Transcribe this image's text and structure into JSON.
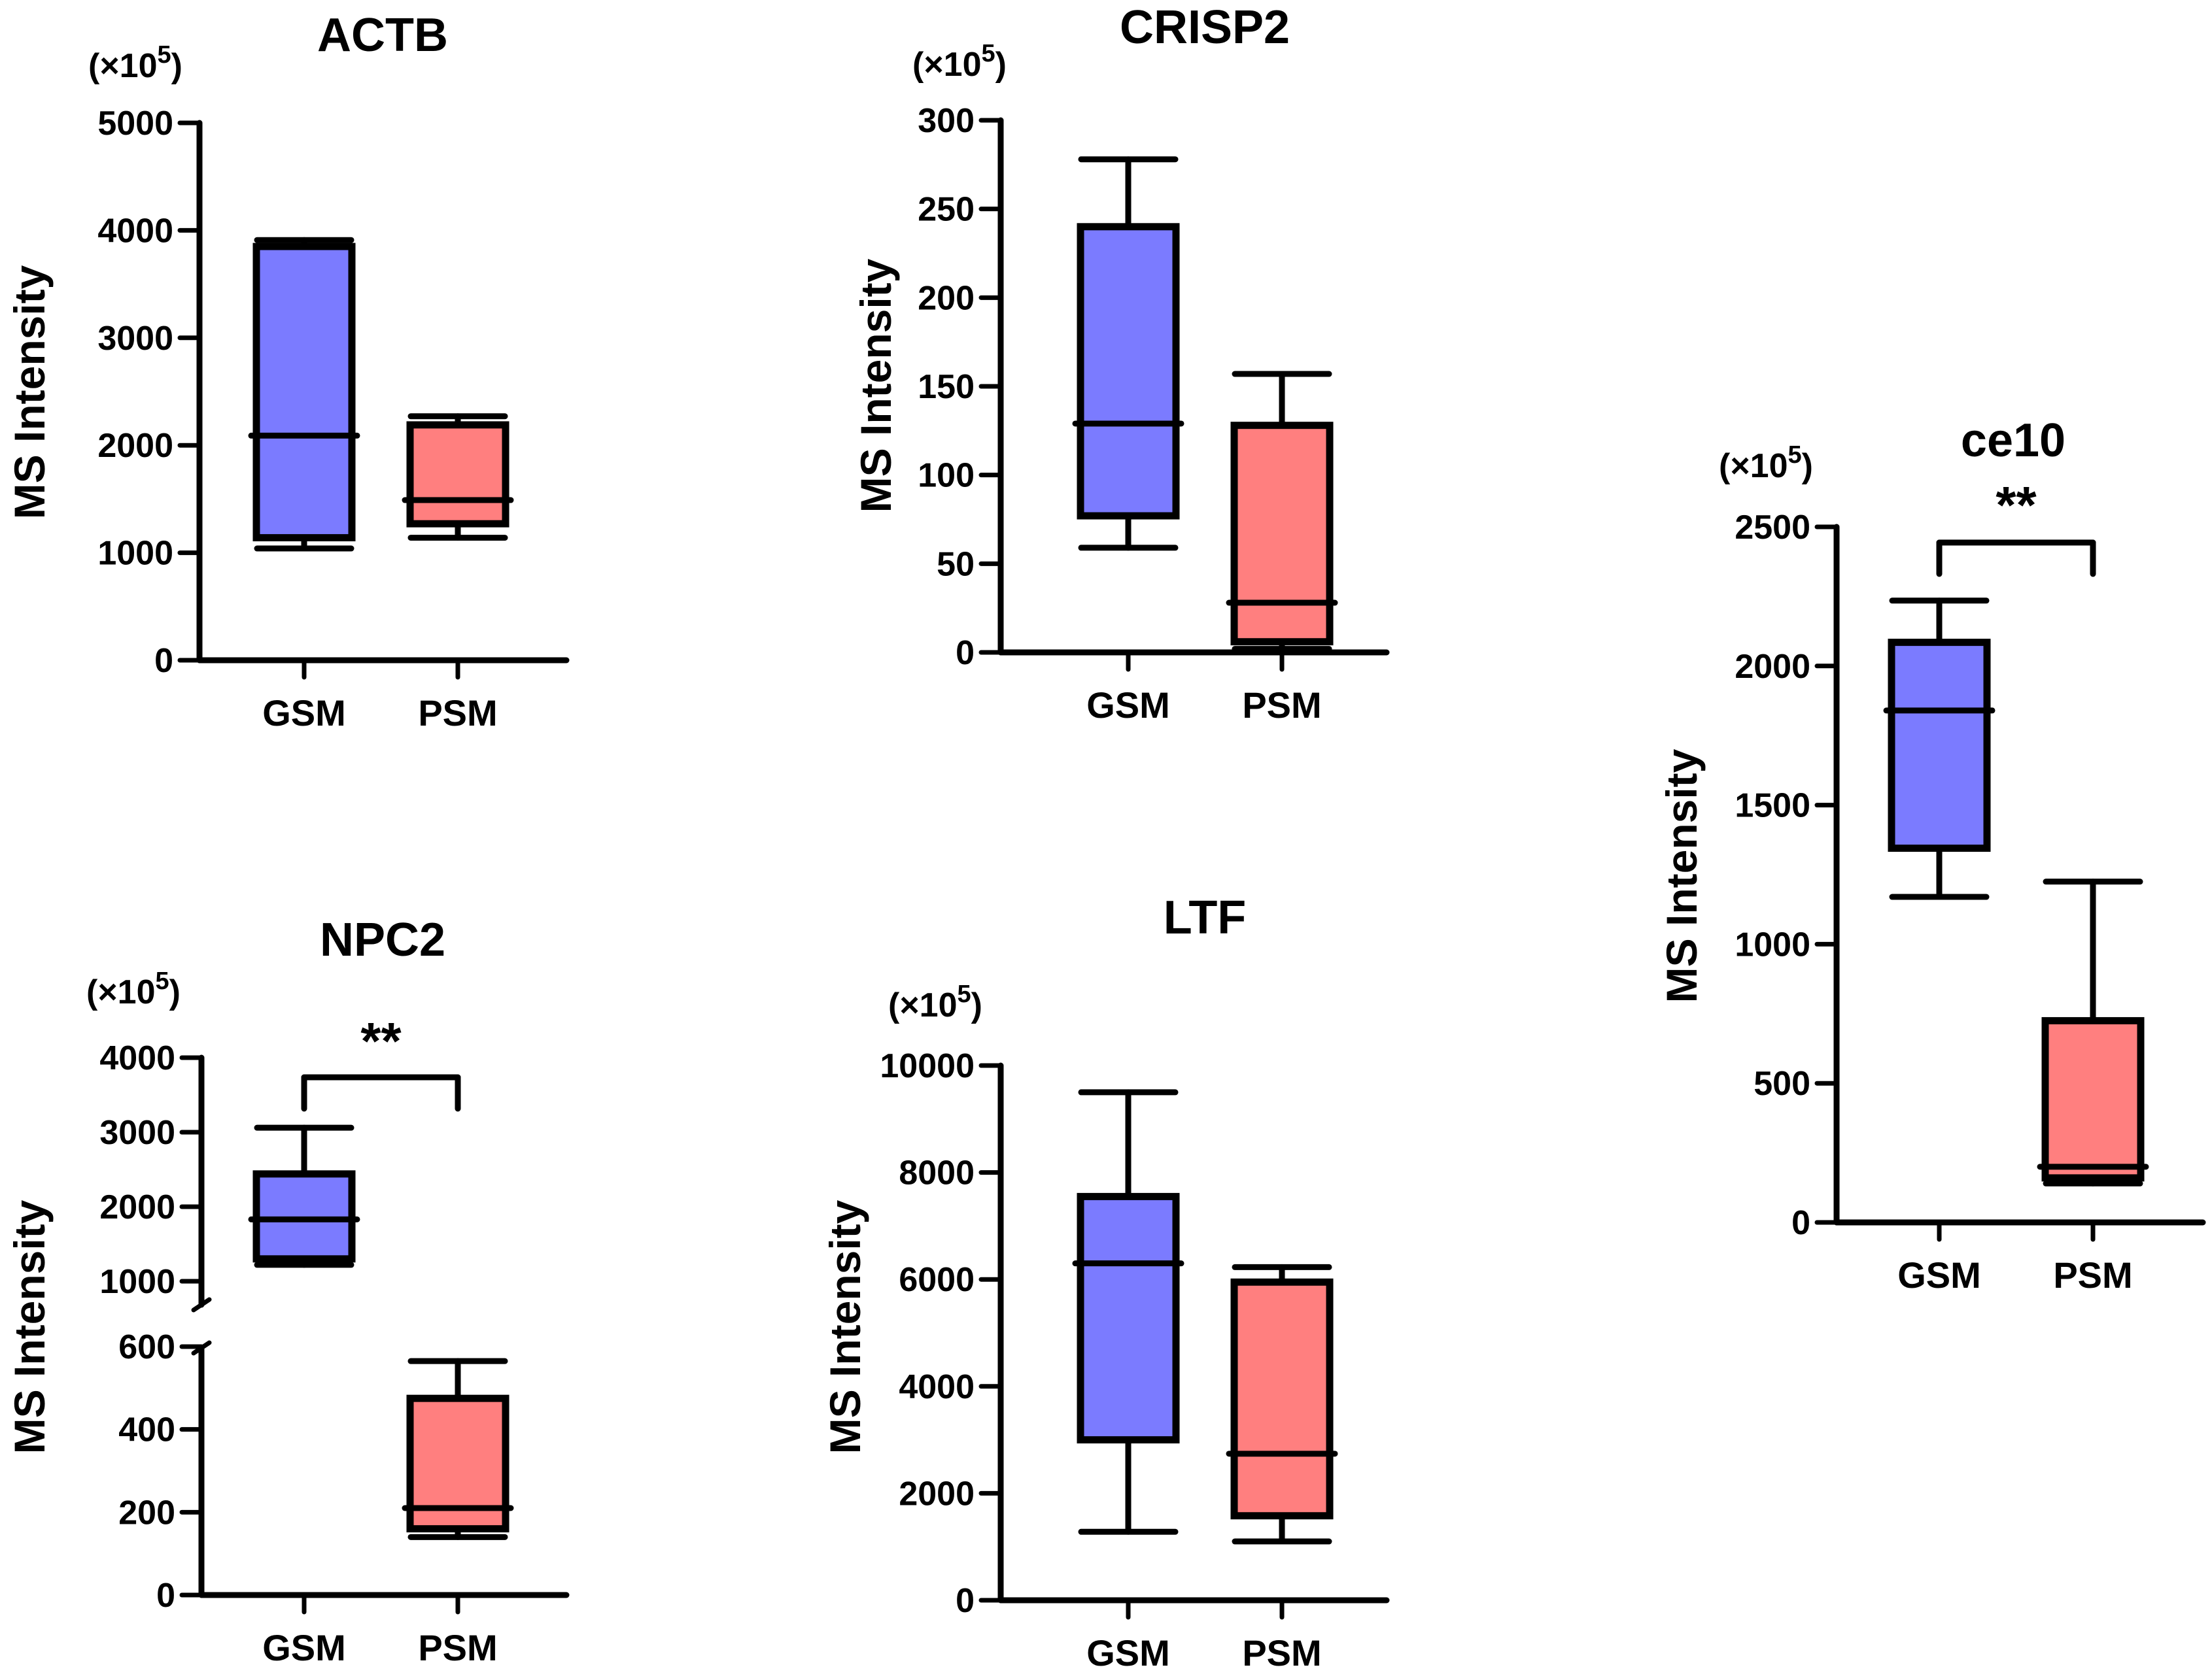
{
  "figure": {
    "colors": {
      "gsm": "#7b7bff",
      "psm": "#ff7f7f",
      "stroke": "#000000"
    }
  },
  "chart_data": [
    {
      "id": "actb",
      "type": "box",
      "title": "ACTB",
      "ylabel": "MS Intensity",
      "scale_label": "(×10",
      "scale_exp": "5",
      "scale_close": ")",
      "categories": [
        "GSM",
        "PSM"
      ],
      "ylim": [
        0,
        5000
      ],
      "yticks": [
        0,
        1000,
        2000,
        3000,
        4000,
        5000
      ],
      "ytick_labels": [
        "0",
        "1000",
        "2000",
        "3000",
        "4000",
        "5000"
      ],
      "boxes": [
        {
          "name": "GSM",
          "min": 1040,
          "q1": 1140,
          "median": 2090,
          "q3": 3850,
          "max": 3910
        },
        {
          "name": "PSM",
          "min": 1140,
          "q1": 1270,
          "median": 1490,
          "q3": 2190,
          "max": 2270
        }
      ]
    },
    {
      "id": "crisp2",
      "type": "box",
      "title": "CRISP2",
      "ylabel": "MS Intensity",
      "scale_label": "(×10",
      "scale_exp": "5",
      "scale_close": ")",
      "categories": [
        "GSM",
        "PSM"
      ],
      "ylim": [
        0,
        300
      ],
      "yticks": [
        0,
        50,
        100,
        150,
        200,
        250,
        300
      ],
      "ytick_labels": [
        "0",
        "50",
        "100",
        "150",
        "200",
        "250",
        "300"
      ],
      "boxes": [
        {
          "name": "GSM",
          "min": 59,
          "q1": 77,
          "median": 129,
          "q3": 240,
          "max": 278
        },
        {
          "name": "PSM",
          "min": 2,
          "q1": 6,
          "median": 28,
          "q3": 128,
          "max": 157
        }
      ]
    },
    {
      "id": "ce10",
      "type": "box",
      "title": "ce10",
      "ylabel": "MS Intensity",
      "scale_label": "(×10",
      "scale_exp": "5",
      "scale_close": ")",
      "categories": [
        "GSM",
        "PSM"
      ],
      "ylim": [
        0,
        2500
      ],
      "yticks": [
        0,
        500,
        1000,
        1500,
        2000,
        2500
      ],
      "ytick_labels": [
        "0",
        "500",
        "1000",
        "1500",
        "2000",
        "2500"
      ],
      "significance": "**",
      "boxes": [
        {
          "name": "GSM",
          "min": 1170,
          "q1": 1345,
          "median": 1840,
          "q3": 2085,
          "max": 2235
        },
        {
          "name": "PSM",
          "min": 140,
          "q1": 160,
          "median": 200,
          "q3": 725,
          "max": 1225
        }
      ]
    },
    {
      "id": "npc2",
      "type": "box",
      "title": "NPC2",
      "ylabel": "MS Intensity",
      "scale_label": "(×10",
      "scale_exp": "5",
      "scale_close": ")",
      "categories": [
        "GSM",
        "PSM"
      ],
      "broken_axis": {
        "lower_range": [
          0,
          600
        ],
        "upper_range": [
          1000,
          4000
        ]
      },
      "yticks": [
        0,
        200,
        400,
        600,
        1000,
        2000,
        3000,
        4000
      ],
      "ytick_labels": [
        "0",
        "200",
        "400",
        "600",
        "1000",
        "2000",
        "3000",
        "4000"
      ],
      "significance": "**",
      "boxes": [
        {
          "name": "GSM",
          "min": 1220,
          "q1": 1300,
          "median": 1830,
          "q3": 2440,
          "max": 3060
        },
        {
          "name": "PSM",
          "min": 140,
          "q1": 160,
          "median": 210,
          "q3": 475,
          "max": 565
        }
      ]
    },
    {
      "id": "ltf",
      "type": "box",
      "title": "LTF",
      "ylabel": "MS Intensity",
      "scale_label": "(×10",
      "scale_exp": "5",
      "scale_close": ")",
      "categories": [
        "GSM",
        "PSM"
      ],
      "ylim": [
        0,
        10000
      ],
      "yticks": [
        0,
        2000,
        4000,
        6000,
        8000,
        10000
      ],
      "ytick_labels": [
        "0",
        "2000",
        "4000",
        "6000",
        "8000",
        "10000"
      ],
      "boxes": [
        {
          "name": "GSM",
          "min": 1280,
          "q1": 3000,
          "median": 6300,
          "q3": 7550,
          "max": 9500
        },
        {
          "name": "PSM",
          "min": 1100,
          "q1": 1580,
          "median": 2740,
          "q3": 5950,
          "max": 6230
        }
      ]
    }
  ]
}
